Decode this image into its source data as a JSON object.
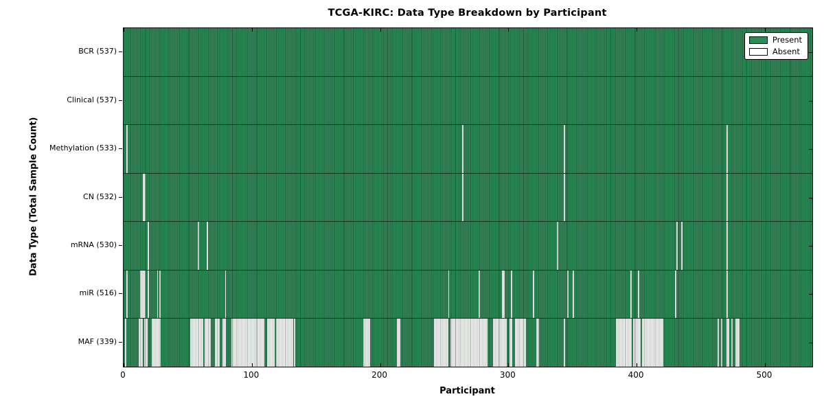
{
  "chart_data": {
    "type": "heatmap",
    "title": "TCGA-KIRC: Data Type Breakdown by Participant",
    "xlabel": "Participant",
    "ylabel": "Data Type (Total Sample Count)",
    "x_ticks": [
      0,
      100,
      200,
      300,
      400,
      500
    ],
    "x_range": [
      0,
      537
    ],
    "n_participants": 537,
    "present_color": "#2e8b57",
    "absent_color": "#fdfdfd",
    "grid": false,
    "legend_position": "upper right",
    "legend": [
      {
        "label": "Present",
        "color": "#2e8b57"
      },
      {
        "label": "Absent",
        "color": "#ffffff"
      }
    ],
    "rows": [
      {
        "label": "BCR (537)",
        "data_type": "BCR",
        "present_count": 537,
        "absent_count": 0,
        "absent_ranges": []
      },
      {
        "label": "Clinical (537)",
        "data_type": "Clinical",
        "present_count": 537,
        "absent_count": 0,
        "absent_ranges": []
      },
      {
        "label": "Methylation (533)",
        "data_type": "Methylation",
        "present_count": 533,
        "absent_count": 4,
        "absent_ranges": [
          [
            2,
            2
          ],
          [
            264,
            264
          ],
          [
            343,
            343
          ],
          [
            470,
            470
          ]
        ]
      },
      {
        "label": "CN (532)",
        "data_type": "CN",
        "present_count": 532,
        "absent_count": 5,
        "absent_ranges": [
          [
            15,
            16
          ],
          [
            264,
            264
          ],
          [
            343,
            343
          ],
          [
            470,
            470
          ]
        ]
      },
      {
        "label": "mRNA (530)",
        "data_type": "mRNA",
        "present_count": 530,
        "absent_count": 7,
        "absent_ranges": [
          [
            19,
            19
          ],
          [
            58,
            58
          ],
          [
            65,
            65
          ],
          [
            338,
            338
          ],
          [
            431,
            431
          ],
          [
            435,
            435
          ],
          [
            470,
            470
          ]
        ]
      },
      {
        "label": "miR (516)",
        "data_type": "miR",
        "present_count": 516,
        "absent_count": 21,
        "absent_ranges": [
          [
            2,
            2
          ],
          [
            13,
            16
          ],
          [
            19,
            19
          ],
          [
            26,
            26
          ],
          [
            28,
            28
          ],
          [
            79,
            79
          ],
          [
            253,
            253
          ],
          [
            277,
            277
          ],
          [
            295,
            296
          ],
          [
            302,
            302
          ],
          [
            319,
            319
          ],
          [
            346,
            346
          ],
          [
            350,
            350
          ],
          [
            395,
            395
          ],
          [
            401,
            401
          ],
          [
            430,
            430
          ],
          [
            470,
            470
          ]
        ]
      },
      {
        "label": "MAF (339)",
        "data_type": "MAF",
        "present_count": 339,
        "absent_count": 198,
        "absent_ranges": [
          [
            1,
            1
          ],
          [
            12,
            14
          ],
          [
            16,
            18
          ],
          [
            22,
            28
          ],
          [
            52,
            61
          ],
          [
            63,
            67
          ],
          [
            71,
            74
          ],
          [
            77,
            79
          ],
          [
            84,
            109
          ],
          [
            112,
            117
          ],
          [
            119,
            131
          ],
          [
            133,
            133
          ],
          [
            187,
            191
          ],
          [
            213,
            215
          ],
          [
            242,
            252
          ],
          [
            255,
            283
          ],
          [
            288,
            298
          ],
          [
            301,
            302
          ],
          [
            305,
            313
          ],
          [
            322,
            323
          ],
          [
            343,
            343
          ],
          [
            384,
            395
          ],
          [
            397,
            402
          ],
          [
            404,
            420
          ],
          [
            463,
            463
          ],
          [
            466,
            466
          ],
          [
            470,
            471
          ],
          [
            474,
            474
          ],
          [
            477,
            479
          ]
        ]
      }
    ]
  }
}
